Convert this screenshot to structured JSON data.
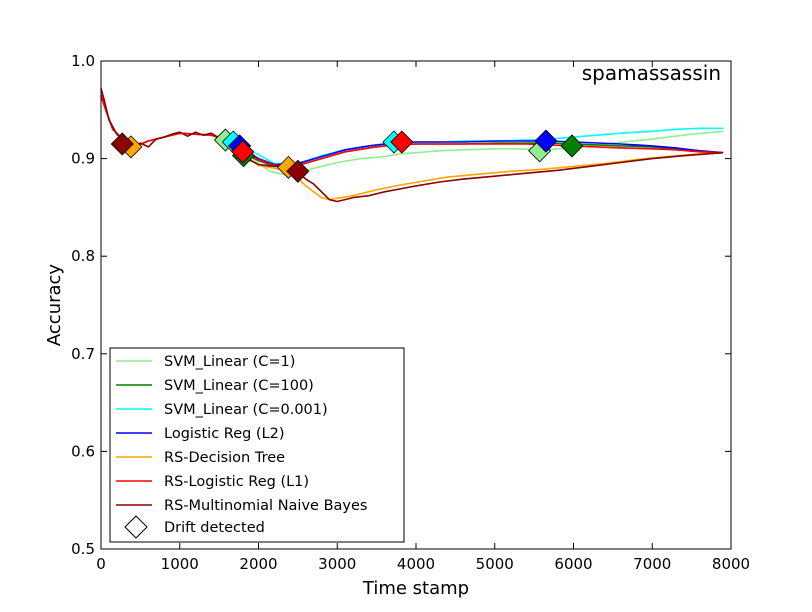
{
  "chart_data": {
    "type": "line",
    "title": "spamassassin",
    "xlabel": "Time stamp",
    "ylabel": "Accuracy",
    "xlim": [
      0,
      8000
    ],
    "ylim": [
      0.5,
      1.0
    ],
    "xticks": [
      0,
      1000,
      2000,
      3000,
      4000,
      5000,
      6000,
      7000,
      8000
    ],
    "yticks": [
      0.5,
      0.6,
      0.7,
      0.8,
      0.9,
      1.0
    ],
    "xtick_labels": [
      "0",
      "1000",
      "2000",
      "3000",
      "4000",
      "5000",
      "6000",
      "7000",
      "8000"
    ],
    "ytick_labels": [
      "0.5",
      "0.6",
      "0.7",
      "0.8",
      "0.9",
      "1.0"
    ],
    "grid": false,
    "legend_position": "lower-left",
    "series": [
      {
        "name": "SVM_Linear (C=1)",
        "color": "#90ee90",
        "x": [
          0,
          60,
          150,
          300,
          420,
          600,
          800,
          1000,
          1200,
          1400,
          1600,
          1800,
          2000,
          2150,
          2300,
          2500,
          2700,
          3000,
          3300,
          3600,
          3800,
          4000,
          4300,
          4600,
          5000,
          5300,
          5600,
          6000,
          6500,
          7000,
          7500,
          7900
        ],
        "values": [
          0.965,
          0.95,
          0.93,
          0.918,
          0.912,
          0.918,
          0.922,
          0.926,
          0.925,
          0.924,
          0.92,
          0.91,
          0.895,
          0.887,
          0.884,
          0.886,
          0.89,
          0.896,
          0.9,
          0.902,
          0.905,
          0.906,
          0.908,
          0.909,
          0.91,
          0.91,
          0.909,
          0.911,
          0.916,
          0.92,
          0.925,
          0.928
        ],
        "drifts": [
          [
            1580,
            0.919
          ],
          [
            5570,
            0.908
          ]
        ]
      },
      {
        "name": "SVM_Linear (C=100)",
        "color": "#008000",
        "x": [
          0,
          60,
          150,
          300,
          420,
          600,
          800,
          1000,
          1200,
          1400,
          1600,
          1800,
          1900,
          2000,
          2200,
          2500,
          2800,
          3100,
          3400,
          3700,
          4000,
          4300,
          4600,
          5000,
          5400,
          5700,
          6000,
          6300,
          6600,
          7000,
          7300,
          7600,
          7900
        ],
        "values": [
          0.965,
          0.95,
          0.93,
          0.918,
          0.912,
          0.918,
          0.922,
          0.926,
          0.925,
          0.924,
          0.92,
          0.91,
          0.902,
          0.898,
          0.892,
          0.893,
          0.9,
          0.907,
          0.911,
          0.914,
          0.915,
          0.915,
          0.915,
          0.916,
          0.916,
          0.916,
          0.915,
          0.914,
          0.913,
          0.912,
          0.91,
          0.908,
          0.906
        ],
        "drifts": [
          [
            1810,
            0.903
          ],
          [
            5980,
            0.913
          ]
        ]
      },
      {
        "name": "SVM_Linear (C=0.001)",
        "color": "#00ffff",
        "x": [
          0,
          60,
          150,
          300,
          420,
          600,
          800,
          1000,
          1200,
          1400,
          1600,
          1700,
          1800,
          2000,
          2200,
          2500,
          2800,
          3100,
          3400,
          3700,
          4000,
          4300,
          4600,
          5000,
          5400,
          5700,
          6000,
          6300,
          6600,
          7000,
          7300,
          7600,
          7900
        ],
        "values": [
          0.965,
          0.95,
          0.93,
          0.918,
          0.912,
          0.918,
          0.922,
          0.926,
          0.925,
          0.924,
          0.92,
          0.916,
          0.912,
          0.904,
          0.895,
          0.895,
          0.903,
          0.909,
          0.913,
          0.916,
          0.917,
          0.917,
          0.918,
          0.918,
          0.919,
          0.92,
          0.922,
          0.924,
          0.926,
          0.928,
          0.93,
          0.931,
          0.931
        ],
        "drifts": [
          [
            1680,
            0.917
          ],
          [
            3720,
            0.917
          ]
        ]
      },
      {
        "name": "Logistic Reg (L2)",
        "color": "#0000ff",
        "x": [
          0,
          60,
          150,
          300,
          420,
          600,
          800,
          1000,
          1200,
          1400,
          1600,
          1750,
          1900,
          2000,
          2200,
          2500,
          2800,
          3100,
          3400,
          3700,
          4000,
          4300,
          4600,
          5000,
          5400,
          5700,
          6000,
          6300,
          6600,
          7000,
          7300,
          7600,
          7900
        ],
        "values": [
          0.965,
          0.95,
          0.93,
          0.918,
          0.912,
          0.918,
          0.922,
          0.926,
          0.925,
          0.924,
          0.92,
          0.915,
          0.905,
          0.9,
          0.894,
          0.895,
          0.902,
          0.909,
          0.913,
          0.916,
          0.917,
          0.917,
          0.917,
          0.918,
          0.918,
          0.918,
          0.917,
          0.916,
          0.915,
          0.913,
          0.911,
          0.908,
          0.906
        ],
        "drifts": [
          [
            1760,
            0.913
          ],
          [
            5650,
            0.918
          ]
        ]
      },
      {
        "name": "RS-Decision Tree",
        "color": "#ffa500",
        "x": [
          0,
          60,
          150,
          300,
          420,
          600,
          800,
          1000,
          1200,
          1400,
          1600,
          1800,
          2000,
          2200,
          2400,
          2600,
          2800,
          2900,
          3200,
          3500,
          3800,
          4100,
          4400,
          4800,
          5200,
          5600,
          6000,
          6400,
          6800,
          7200,
          7600,
          7900
        ],
        "values": [
          0.965,
          0.95,
          0.93,
          0.918,
          0.912,
          0.918,
          0.922,
          0.926,
          0.925,
          0.924,
          0.918,
          0.905,
          0.893,
          0.89,
          0.888,
          0.872,
          0.86,
          0.858,
          0.862,
          0.868,
          0.873,
          0.877,
          0.881,
          0.884,
          0.887,
          0.889,
          0.892,
          0.895,
          0.899,
          0.902,
          0.905,
          0.906
        ],
        "drifts": [
          [
            380,
            0.912
          ],
          [
            2380,
            0.891
          ]
        ]
      },
      {
        "name": "RS-Logistic Reg (L1)",
        "color": "#ff0000",
        "x": [
          0,
          60,
          150,
          300,
          420,
          600,
          800,
          1000,
          1200,
          1400,
          1600,
          1800,
          2000,
          2200,
          2500,
          2800,
          3100,
          3400,
          3700,
          4000,
          4300,
          4600,
          5000,
          5400,
          5700,
          6000,
          6300,
          6600,
          7000,
          7300,
          7600,
          7900
        ],
        "values": [
          0.965,
          0.95,
          0.93,
          0.918,
          0.912,
          0.918,
          0.922,
          0.926,
          0.925,
          0.924,
          0.919,
          0.908,
          0.899,
          0.893,
          0.893,
          0.9,
          0.907,
          0.911,
          0.914,
          0.915,
          0.915,
          0.915,
          0.915,
          0.915,
          0.914,
          0.913,
          0.912,
          0.911,
          0.91,
          0.909,
          0.907,
          0.906
        ],
        "drifts": [
          [
            1800,
            0.907
          ],
          [
            3820,
            0.917
          ]
        ]
      },
      {
        "name": "RS-Multinomial Naive Bayes",
        "color": "#8b0000",
        "x": [
          0,
          40,
          100,
          200,
          300,
          400,
          500,
          600,
          700,
          800,
          900,
          1000,
          1100,
          1200,
          1300,
          1400,
          1500,
          1600,
          1700,
          1800,
          1900,
          2000,
          2100,
          2200,
          2300,
          2400,
          2500,
          2600,
          2700,
          2800,
          2900,
          3000,
          3200,
          3400,
          3600,
          3800,
          4000,
          4300,
          4600,
          5000,
          5400,
          5800,
          6200,
          6600,
          7000,
          7400,
          7900
        ],
        "values": [
          0.972,
          0.96,
          0.94,
          0.925,
          0.918,
          0.91,
          0.916,
          0.912,
          0.92,
          0.922,
          0.925,
          0.927,
          0.923,
          0.927,
          0.924,
          0.926,
          0.921,
          0.918,
          0.912,
          0.905,
          0.898,
          0.894,
          0.893,
          0.892,
          0.893,
          0.891,
          0.886,
          0.879,
          0.874,
          0.866,
          0.858,
          0.856,
          0.86,
          0.862,
          0.866,
          0.869,
          0.872,
          0.876,
          0.879,
          0.882,
          0.885,
          0.888,
          0.892,
          0.896,
          0.9,
          0.903,
          0.906
        ],
        "drifts": [
          [
            270,
            0.915
          ],
          [
            2500,
            0.887
          ]
        ]
      }
    ],
    "drift_legend_label": "Drift detected"
  }
}
